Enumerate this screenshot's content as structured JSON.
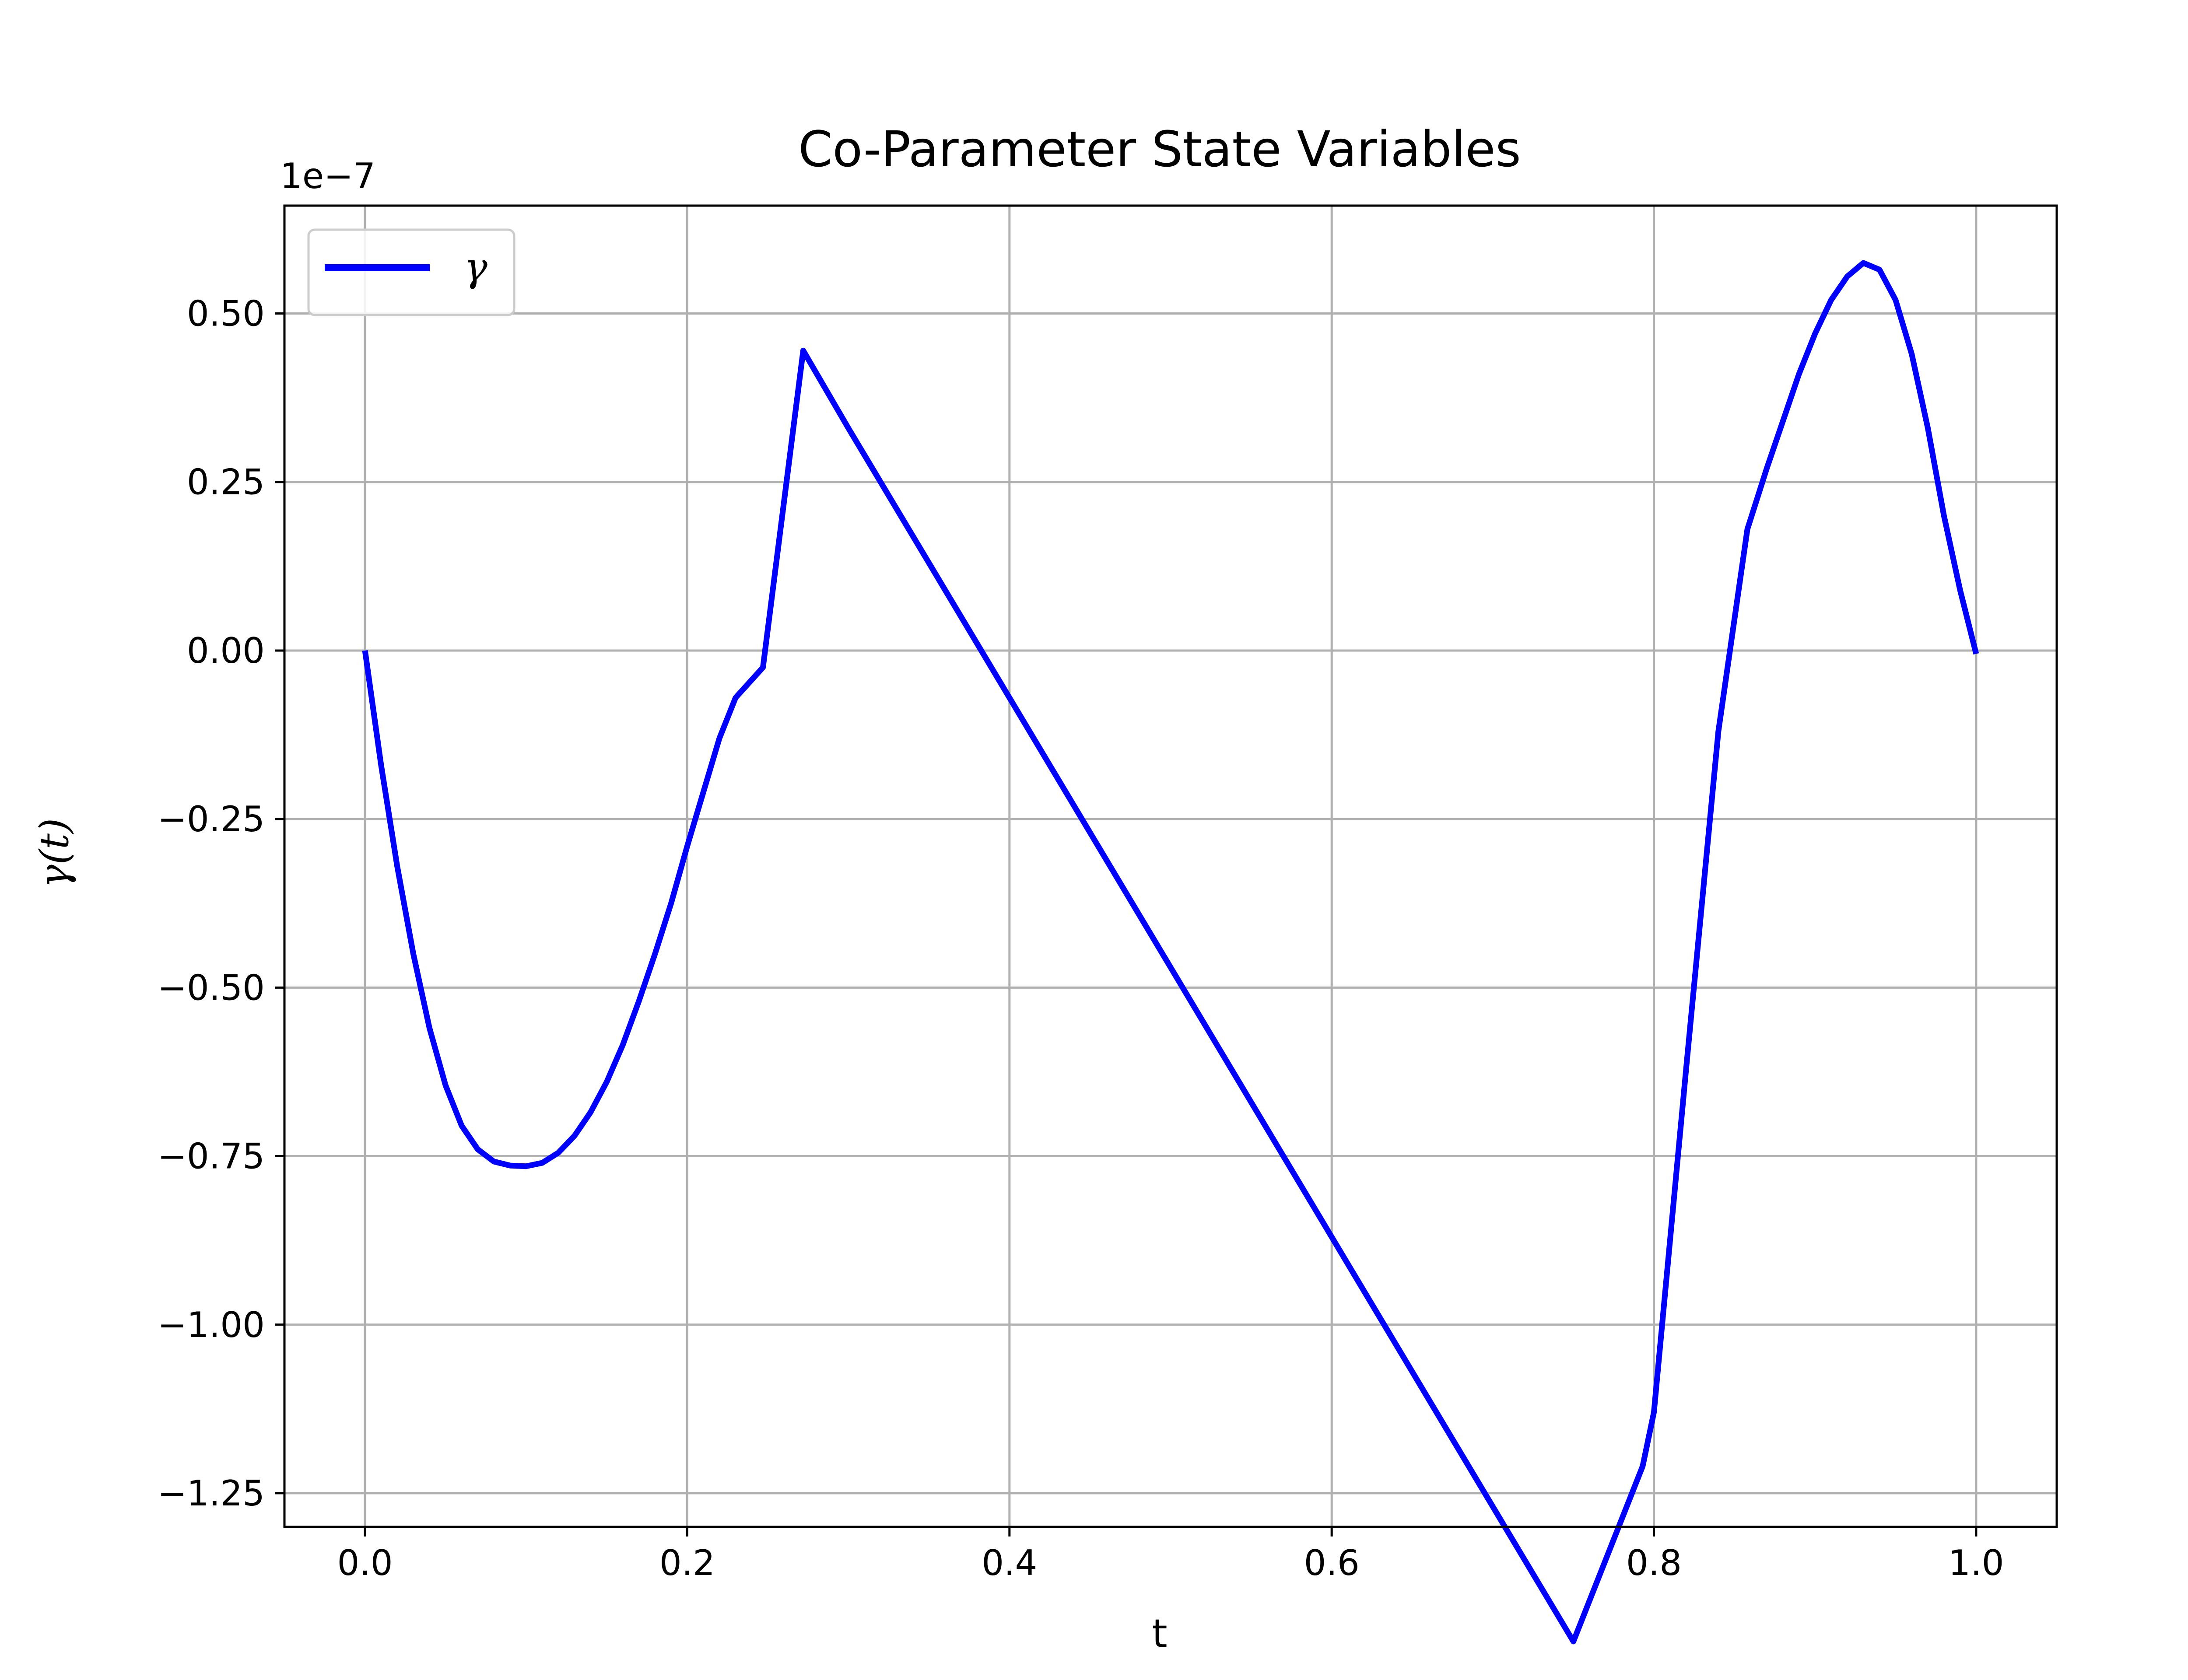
{
  "chart_data": {
    "type": "line",
    "title": "Co-Parameter State Variables",
    "xlabel": "t",
    "ylabel": "γ(t)",
    "offset_text": "1e−7",
    "xlim": [
      -0.05,
      1.05
    ],
    "ylim": [
      -1.3,
      0.66
    ],
    "grid": true,
    "legend_position": "upper left",
    "x_ticks": [
      0.0,
      0.2,
      0.4,
      0.6,
      0.8,
      1.0
    ],
    "x_tick_labels": [
      "0.0",
      "0.2",
      "0.4",
      "0.6",
      "0.8",
      "1.0"
    ],
    "y_ticks": [
      0.5,
      0.25,
      0.0,
      -0.25,
      -0.5,
      -0.75,
      -1.0,
      -1.25
    ],
    "y_tick_labels": [
      "0.50",
      "0.25",
      "0.00",
      "−0.25",
      "−0.50",
      "−0.75",
      "−1.00",
      "−1.25"
    ],
    "series": [
      {
        "name": "γ",
        "color": "#0000ff",
        "x": [
          0.0,
          0.01,
          0.02,
          0.03,
          0.04,
          0.05,
          0.06,
          0.07,
          0.08,
          0.09,
          0.1,
          0.11,
          0.12,
          0.13,
          0.14,
          0.15,
          0.16,
          0.17,
          0.18,
          0.19,
          0.2,
          0.21,
          0.22,
          0.23,
          0.247,
          0.272,
          0.3,
          0.35,
          0.4,
          0.45,
          0.5,
          0.55,
          0.6,
          0.65,
          0.7,
          0.75,
          0.793,
          0.8,
          0.82,
          0.84,
          0.858,
          0.87,
          0.88,
          0.89,
          0.9,
          0.91,
          0.92,
          0.93,
          0.94,
          0.95,
          0.96,
          0.97,
          0.98,
          0.99,
          1.0
        ],
        "y": [
          0.0,
          -0.17,
          -0.32,
          -0.45,
          -0.56,
          -0.645,
          -0.705,
          -0.74,
          -0.758,
          -0.764,
          -0.765,
          -0.76,
          -0.745,
          -0.72,
          -0.685,
          -0.64,
          -0.585,
          -0.52,
          -0.45,
          -0.375,
          -0.29,
          -0.21,
          -0.13,
          -0.07,
          -0.025,
          0.445,
          0.33,
          0.13,
          -0.07,
          -0.27,
          -0.47,
          -0.67,
          -0.87,
          -1.07,
          -1.27,
          -1.47,
          -1.21,
          -1.13,
          -0.62,
          -0.12,
          0.18,
          0.27,
          0.34,
          0.41,
          0.47,
          0.52,
          0.555,
          0.575,
          0.565,
          0.52,
          0.44,
          0.33,
          0.2,
          0.09,
          -0.005
        ]
      }
    ]
  }
}
